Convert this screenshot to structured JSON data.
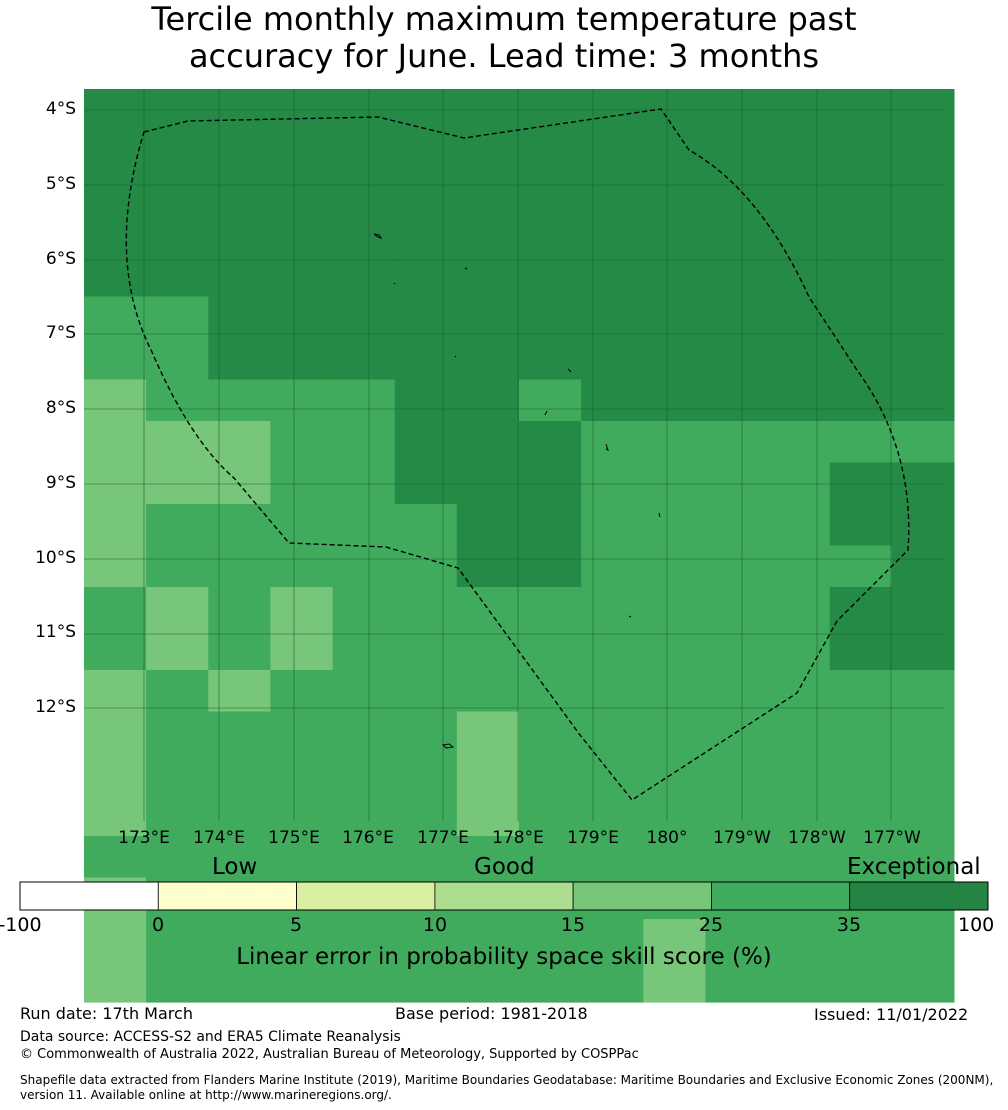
{
  "title": {
    "line1": "Tercile monthly maximum temperature past",
    "line2": "accuracy for June. Lead time: 3 months"
  },
  "map": {
    "lat_labels": [
      "4°S",
      "5°S",
      "6°S",
      "7°S",
      "8°S",
      "9°S",
      "10°S",
      "11°S",
      "12°S"
    ],
    "lon_labels": [
      "173°E",
      "174°E",
      "175°E",
      "176°E",
      "177°E",
      "178°E",
      "179°E",
      "180°",
      "179°W",
      "178°W",
      "177°W"
    ],
    "boundary": "dashed black line (EEZ)",
    "colors": {
      "exceptional": "#248a45",
      "very_good": "#41ab5d",
      "good": "#78c679",
      "grid": "#1c5e30"
    },
    "grid_cells": [
      [
        "E",
        "E",
        "E",
        "E",
        "E",
        "E",
        "E",
        "E",
        "E",
        "E",
        "E",
        "E",
        "E",
        "E"
      ],
      [
        "E",
        "E",
        "E",
        "E",
        "E",
        "E",
        "E",
        "E",
        "E",
        "E",
        "E",
        "E",
        "E",
        "E"
      ],
      [
        "E",
        "E",
        "E",
        "E",
        "E",
        "E",
        "E",
        "E",
        "E",
        "E",
        "E",
        "E",
        "E",
        "E"
      ],
      [
        "E",
        "E",
        "E",
        "E",
        "E",
        "E",
        "E",
        "E",
        "E",
        "E",
        "E",
        "E",
        "E",
        "E"
      ],
      [
        "E",
        "E",
        "E",
        "E",
        "E",
        "E",
        "E",
        "E",
        "E",
        "E",
        "E",
        "E",
        "E",
        "E"
      ],
      [
        "V",
        "V",
        "E",
        "E",
        "E",
        "E",
        "E",
        "E",
        "E",
        "E",
        "E",
        "E",
        "E",
        "E"
      ],
      [
        "V",
        "V",
        "E",
        "E",
        "E",
        "E",
        "E",
        "E",
        "E",
        "E",
        "E",
        "E",
        "E",
        "E"
      ],
      [
        "G",
        "V",
        "V",
        "V",
        "V",
        "E",
        "E",
        "V",
        "E",
        "E",
        "E",
        "E",
        "E",
        "E"
      ],
      [
        "G",
        "G",
        "G",
        "V",
        "V",
        "E",
        "E",
        "E",
        "V",
        "V",
        "V",
        "V",
        "V",
        "V"
      ],
      [
        "G",
        "G",
        "G",
        "V",
        "V",
        "E",
        "E",
        "E",
        "V",
        "V",
        "V",
        "V",
        "E",
        "E"
      ],
      [
        "G",
        "V",
        "V",
        "V",
        "V",
        "V",
        "E",
        "E",
        "V",
        "V",
        "V",
        "V",
        "E",
        "E"
      ],
      [
        "G",
        "V",
        "V",
        "V",
        "V",
        "V",
        "E",
        "E",
        "V",
        "V",
        "V",
        "V",
        "V",
        "E"
      ],
      [
        "V",
        "G",
        "V",
        "G",
        "V",
        "V",
        "V",
        "V",
        "V",
        "V",
        "V",
        "V",
        "E",
        "E"
      ],
      [
        "V",
        "G",
        "V",
        "G",
        "V",
        "V",
        "V",
        "V",
        "V",
        "V",
        "V",
        "V",
        "E",
        "E"
      ],
      [
        "G",
        "V",
        "G",
        "V",
        "V",
        "V",
        "V",
        "V",
        "V",
        "V",
        "V",
        "V",
        "V",
        "V"
      ],
      [
        "G",
        "V",
        "V",
        "V",
        "V",
        "V",
        "G",
        "V",
        "V",
        "V",
        "V",
        "V",
        "V",
        "V"
      ],
      [
        "G",
        "V",
        "V",
        "V",
        "V",
        "V",
        "G",
        "V",
        "V",
        "V",
        "V",
        "V",
        "V",
        "V"
      ],
      [
        "G",
        "V",
        "V",
        "V",
        "V",
        "V",
        "G",
        "V",
        "V",
        "V",
        "V",
        "V",
        "V",
        "V"
      ],
      [
        "V",
        "V",
        "V",
        "V",
        "V",
        "V",
        "V",
        "V",
        "V",
        "V",
        "V",
        "V",
        "V",
        "V"
      ],
      [
        "G",
        "V",
        "V",
        "V",
        "V",
        "V",
        "V",
        "V",
        "V",
        "V",
        "V",
        "V",
        "V",
        "V"
      ],
      [
        "G",
        "V",
        "V",
        "V",
        "V",
        "V",
        "V",
        "V",
        "V",
        "G",
        "V",
        "V",
        "V",
        "V"
      ],
      [
        "G",
        "V",
        "V",
        "V",
        "V",
        "V",
        "V",
        "V",
        "V",
        "G",
        "V",
        "V",
        "V",
        "V"
      ],
      [
        "V",
        "V",
        "V",
        "V",
        "V",
        "V",
        "V",
        "G",
        "G",
        "G",
        "V",
        "V",
        "V",
        "V"
      ]
    ]
  },
  "colorbar": {
    "categories": [
      "Low",
      "Good",
      "Exceptional"
    ],
    "ticks": [
      "-100",
      "0",
      "5",
      "10",
      "15",
      "25",
      "35",
      "100"
    ],
    "colors": [
      "#ffffff",
      "#ffffcc",
      "#d9f0a3",
      "#addd8e",
      "#78c679",
      "#41ab5d",
      "#238443"
    ],
    "label": "Linear error in probability space skill score (%)"
  },
  "footer": {
    "run_date": "Run date: 17th March",
    "base_period": "Base period: 1981-2018",
    "issued": "Issued: 11/01/2022",
    "data_source": "Data source: ACCESS-S2 and ERA5 Climate Reanalysis",
    "copyright": "© Commonwealth of Australia 2022, Australian Bureau of Meteorology, Supported by COSPPac",
    "shapefile_line1": "Shapefile data extracted from Flanders Marine Institute (2019), Maritime Boundaries Geodatabase: Maritime Boundaries and Exclusive Economic Zones (200NM),",
    "shapefile_line2": "version 11. Available online at http://www.marineregions.org/."
  }
}
